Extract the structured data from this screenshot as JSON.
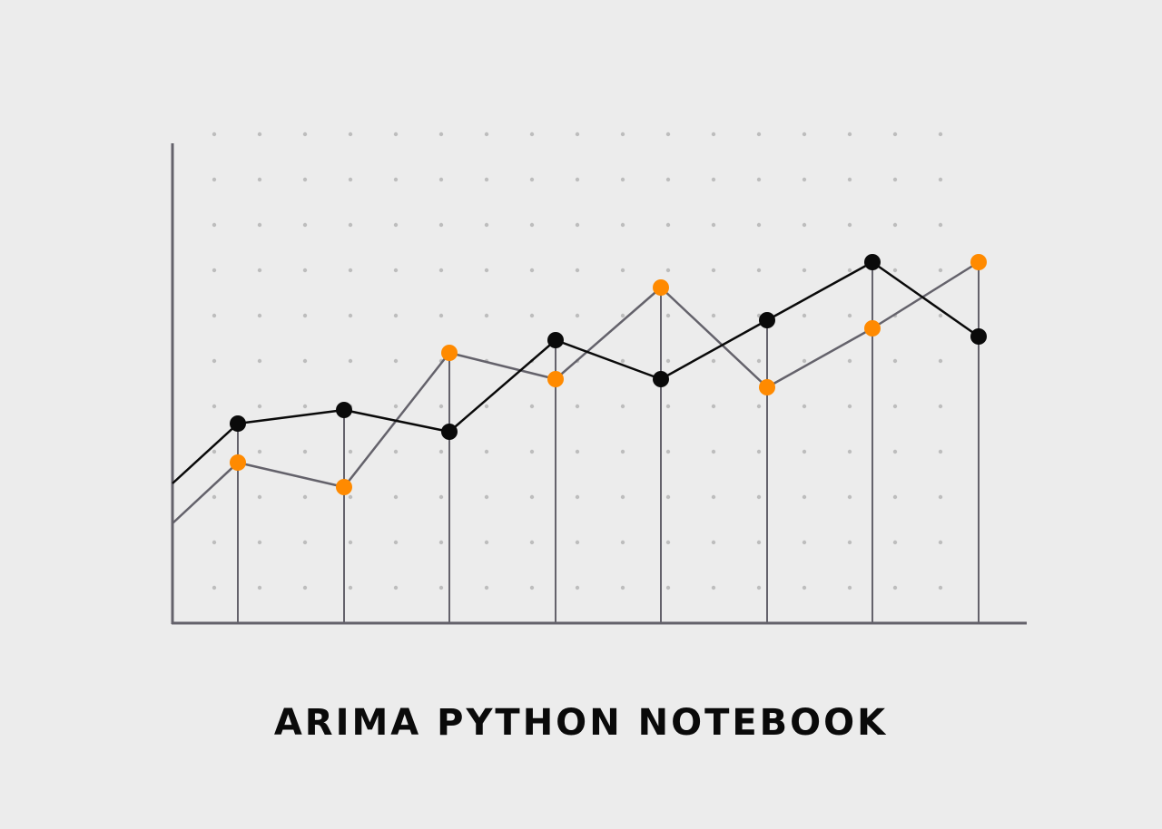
{
  "title": "ARIMA PYTHON NOTEBOOK",
  "colors": {
    "background": "#ececec",
    "axis": "#64626b",
    "grid_dot": "#bdbdbd",
    "stem": "#64626b",
    "series_black_line": "#0a0a0a",
    "series_black_marker": "#0a0a0a",
    "series_orange_line": "#64626b",
    "series_orange_marker": "#ff8a00"
  },
  "chart_data": {
    "type": "line",
    "title": "ARIMA PYTHON NOTEBOOK",
    "xlabel": "",
    "ylabel": "",
    "grid": "dotted",
    "legend": "none",
    "ylim": [
      0,
      10.6
    ],
    "x": [
      1,
      2,
      3,
      4,
      5,
      6,
      7,
      8
    ],
    "series": [
      {
        "name": "black",
        "start_value": 3.08,
        "values": [
          4.4,
          4.7,
          4.22,
          6.24,
          5.38,
          6.68,
          7.96,
          6.32
        ]
      },
      {
        "name": "orange",
        "start_value": 2.2,
        "values": [
          3.54,
          3.0,
          5.96,
          5.38,
          7.4,
          5.2,
          6.5,
          7.96
        ]
      }
    ],
    "annotations": [
      "vertical stem lines from each x point down to the x-axis"
    ]
  }
}
